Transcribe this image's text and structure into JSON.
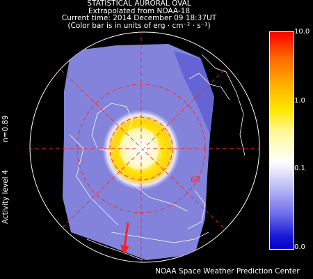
{
  "header": {
    "title": "STATISTICAL AURORAL OVAL",
    "source": "Extrapolated from NOAA-18",
    "time": "Current time: 2014 December 09 18:37UT",
    "units": "(Color bar is in units of erg · cm⁻² · s⁻¹)"
  },
  "side": {
    "n_value": "n=0.89",
    "activity": "Activity level 4"
  },
  "colorbar": {
    "ticks": [
      "10.0",
      "1.0",
      "0.1",
      "0.0"
    ],
    "colors": [
      "#ff0000",
      "#ffae00",
      "#ffe800",
      "#ffffff",
      "#6d6dea",
      "#0000c8"
    ]
  },
  "map": {
    "latitude_label": "60",
    "sun_arrow_color": "#ff2020",
    "grid_color": "#ff2020"
  },
  "footer": {
    "credit": "NOAA Space Weather Prediction Center"
  }
}
